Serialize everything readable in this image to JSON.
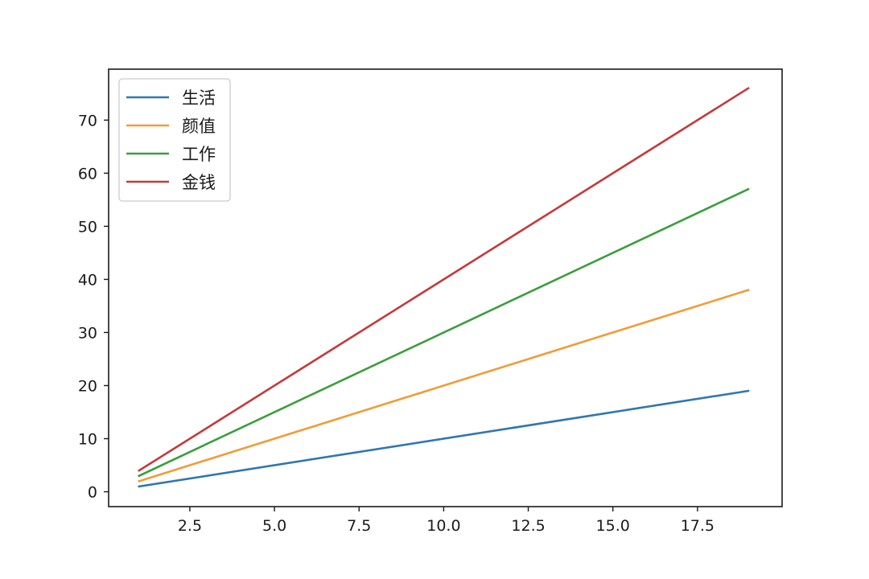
{
  "chart_data": {
    "type": "line",
    "title": "",
    "xlabel": "",
    "ylabel": "",
    "xlim": [
      0.1,
      20.0
    ],
    "ylim": [
      -2.8,
      79.6
    ],
    "x_ticks": [
      2.5,
      5.0,
      7.5,
      10.0,
      12.5,
      15.0,
      17.5
    ],
    "x_tick_labels": [
      "2.5",
      "5.0",
      "7.5",
      "10.0",
      "12.5",
      "15.0",
      "17.5"
    ],
    "y_ticks": [
      0,
      10,
      20,
      30,
      40,
      50,
      60,
      70
    ],
    "y_tick_labels": [
      "0",
      "10",
      "20",
      "30",
      "40",
      "50",
      "60",
      "70"
    ],
    "grid": false,
    "legend_position": "top-left",
    "series": [
      {
        "name": "生活",
        "color": "#2f77b1",
        "x": [
          1,
          19
        ],
        "y": [
          1,
          19
        ]
      },
      {
        "name": "颜值",
        "color": "#f19c38",
        "x": [
          1,
          19
        ],
        "y": [
          2,
          38
        ]
      },
      {
        "name": "工作",
        "color": "#3b9e3b",
        "x": [
          1,
          19
        ],
        "y": [
          3,
          57
        ]
      },
      {
        "name": "金钱",
        "color": "#c53a3b",
        "x": [
          1,
          19
        ],
        "y": [
          4,
          76
        ]
      }
    ]
  }
}
